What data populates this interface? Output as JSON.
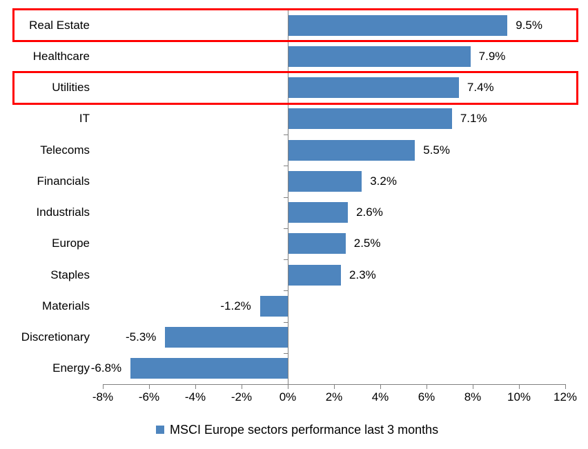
{
  "chart_data": {
    "type": "bar",
    "orientation": "horizontal",
    "title": "",
    "categories": [
      "Real Estate",
      "Healthcare",
      "Utilities",
      "IT",
      "Telecoms",
      "Financials",
      "Industrials",
      "Europe",
      "Staples",
      "Materials",
      "Discretionary",
      "Energy"
    ],
    "values": [
      9.5,
      7.9,
      7.4,
      7.1,
      5.5,
      3.2,
      2.6,
      2.5,
      2.3,
      -1.2,
      -5.3,
      -6.8
    ],
    "value_labels": [
      "9.5%",
      "7.9%",
      "7.4%",
      "7.1%",
      "5.5%",
      "3.2%",
      "2.6%",
      "2.5%",
      "2.3%",
      "-1.2%",
      "-5.3%",
      "-6.8%"
    ],
    "xlim": [
      -8,
      12
    ],
    "xtick_values": [
      -8,
      -6,
      -4,
      -2,
      0,
      2,
      4,
      6,
      8,
      10,
      12
    ],
    "xtick_labels": [
      "-8%",
      "-6%",
      "-4%",
      "-2%",
      "0%",
      "2%",
      "4%",
      "6%",
      "8%",
      "10%",
      "12%"
    ],
    "legend": "MSCI Europe sectors performance last 3 months",
    "legend_position": "bottom-center",
    "grid": false,
    "bar_color": "#4e85be",
    "axis_color": "#808080",
    "text_color": "#000000",
    "highlight_color": "#ff0000",
    "highlighted_categories": [
      "Real Estate",
      "Utilities"
    ]
  }
}
